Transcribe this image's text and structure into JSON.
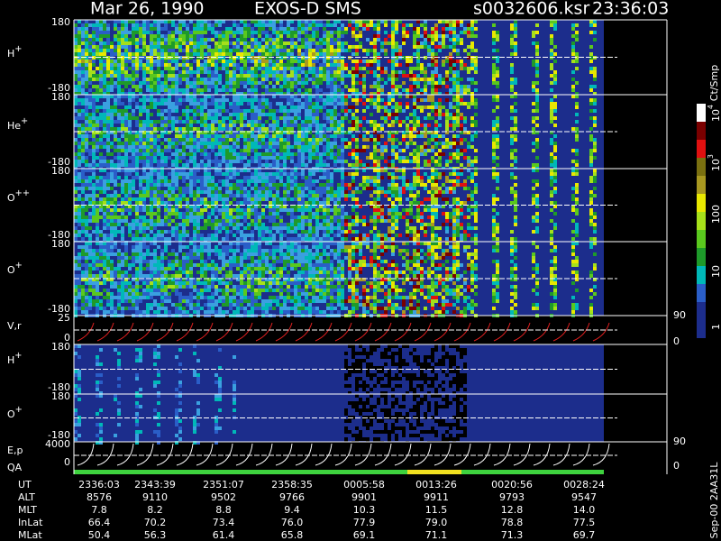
{
  "header": {
    "date": "Mar 26, 1990",
    "instrument": "EXOS-D SMS",
    "file": "s0032606.ksr",
    "time": "23:36:03"
  },
  "panels": [
    {
      "label": {
        "base": "H",
        "sup": "+"
      },
      "left_ticks": [
        "180",
        "-180"
      ]
    },
    {
      "label": {
        "base": "He",
        "sup": "+"
      },
      "left_ticks": [
        "180",
        "-180"
      ]
    },
    {
      "label": {
        "base": "O",
        "sup": "++"
      },
      "left_ticks": [
        "180",
        "-180"
      ]
    },
    {
      "label": {
        "base": "O",
        "sup": "+"
      },
      "left_ticks": [
        "180",
        "-180"
      ]
    },
    {
      "label": {
        "base": "V,r"
      },
      "left_ticks": [
        "25",
        "0"
      ],
      "right_ticks": [
        "90",
        "0"
      ]
    },
    {
      "label": {
        "base": "H",
        "sup": "+"
      },
      "left_ticks": [
        "180",
        "-180"
      ]
    },
    {
      "label": {
        "base": "O",
        "sup": "+"
      },
      "left_ticks": [
        "180",
        "-180"
      ]
    },
    {
      "label": {
        "base": "E,p"
      },
      "left_ticks": [
        "4000",
        "0"
      ],
      "right_ticks": [
        "90",
        "0"
      ]
    }
  ],
  "qa_label": "QA",
  "colorbar": {
    "unit": "Ct/Smp",
    "labels": [
      {
        "base": "10",
        "sup": "4"
      },
      {
        "base": "10",
        "sup": "3"
      },
      {
        "base": "100"
      },
      {
        "base": "10"
      },
      {
        "base": "1"
      }
    ]
  },
  "footer": "Sep-00 2AA31L",
  "orbit_table": {
    "row_labels": [
      "UT",
      "ALT",
      "MLT",
      "InLat",
      "MLat"
    ],
    "rows": [
      [
        "2336:03",
        "2343:39",
        "2351:07",
        "2358:35",
        "0005:58",
        "0013:26",
        "0020:56",
        "0028:24"
      ],
      [
        "8576",
        "9110",
        "9502",
        "9766",
        "9901",
        "9911",
        "9793",
        "9547"
      ],
      [
        "7.8",
        "8.2",
        "8.8",
        "9.4",
        "10.3",
        "11.5",
        "12.8",
        "14.0"
      ],
      [
        "66.4",
        "70.2",
        "73.4",
        "76.0",
        "77.9",
        "79.0",
        "78.8",
        "77.5"
      ],
      [
        "50.4",
        "56.3",
        "61.4",
        "65.8",
        "69.1",
        "71.1",
        "71.3",
        "69.7"
      ]
    ]
  }
}
